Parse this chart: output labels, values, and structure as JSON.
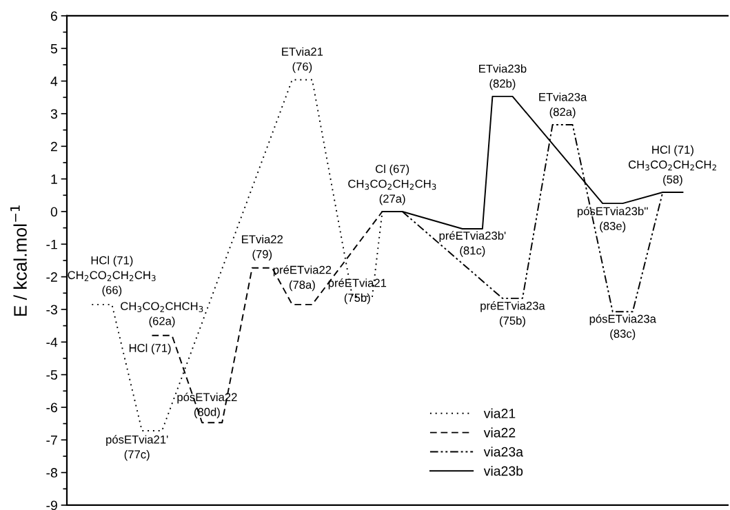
{
  "chart_data": {
    "type": "line",
    "ylabel": "E / kcal.mol$^{−1}$",
    "categories": [
      null,
      null,
      null,
      null,
      null,
      null,
      null,
      null,
      null,
      null,
      null,
      null,
      null,
      null,
      null,
      null,
      null,
      null,
      null,
      null,
      null,
      null,
      null,
      null,
      null,
      null,
      null,
      null,
      null,
      null,
      null,
      null,
      null,
      null,
      null,
      null,
      null,
      null,
      null,
      null,
      null,
      null,
      null,
      null,
      null,
      null,
      null,
      null,
      null,
      null,
      null,
      null,
      null,
      null,
      null,
      null,
      null,
      null,
      null,
      null,
      null,
      null,
      null,
      null,
      null,
      null
    ],
    "series": [
      {
        "name": "via21",
        "color": "#000000",
        "line_style": "dotted",
        "values": [
          null,
          null,
          -2.85,
          null,
          -2.85,
          null,
          null,
          -6.72,
          null,
          -6.72,
          null,
          null,
          null,
          null,
          null,
          null,
          null,
          null,
          null,
          null,
          null,
          null,
          4.04,
          null,
          4.04,
          null,
          null,
          null,
          -2.6,
          null,
          -2.6,
          0,
          null,
          0,
          null,
          null,
          null,
          null,
          null,
          null,
          null,
          null,
          null,
          null,
          null,
          null,
          null,
          null,
          null,
          null,
          null,
          null,
          null,
          null,
          null,
          null,
          null,
          null,
          null,
          null,
          null,
          null,
          null,
          null,
          null,
          null
        ]
      },
      {
        "name": "via22",
        "color": "#000000",
        "line_style": "dashed",
        "values": [
          null,
          null,
          null,
          null,
          null,
          null,
          null,
          null,
          -3.8,
          null,
          -3.8,
          null,
          null,
          -6.47,
          null,
          -6.47,
          null,
          null,
          -1.73,
          null,
          -1.73,
          null,
          -2.85,
          null,
          -2.85,
          null,
          null,
          null,
          null,
          null,
          null,
          0,
          null,
          0,
          null,
          null,
          null,
          null,
          null,
          null,
          null,
          null,
          null,
          null,
          null,
          null,
          null,
          null,
          null,
          null,
          null,
          null,
          null,
          null,
          null,
          null,
          null,
          null,
          null,
          null,
          null,
          null,
          null,
          null,
          null,
          null
        ]
      },
      {
        "name": "via23a",
        "color": "#000000",
        "line_style": "dashdotdot",
        "values": [
          null,
          null,
          null,
          null,
          null,
          null,
          null,
          null,
          null,
          null,
          null,
          null,
          null,
          null,
          null,
          null,
          null,
          null,
          null,
          null,
          null,
          null,
          null,
          null,
          null,
          null,
          null,
          null,
          null,
          null,
          null,
          0,
          null,
          0,
          null,
          null,
          null,
          null,
          null,
          null,
          null,
          null,
          null,
          -2.66,
          null,
          -2.66,
          null,
          null,
          2.66,
          null,
          2.66,
          null,
          null,
          null,
          -3.07,
          null,
          -3.07,
          null,
          null,
          0.59,
          null,
          0.59,
          null,
          null,
          null,
          null
        ]
      },
      {
        "name": "via23b",
        "color": "#000000",
        "line_style": "solid",
        "values": [
          null,
          null,
          null,
          null,
          null,
          null,
          null,
          null,
          null,
          null,
          null,
          null,
          null,
          null,
          null,
          null,
          null,
          null,
          null,
          null,
          null,
          null,
          null,
          null,
          null,
          null,
          null,
          null,
          null,
          null,
          null,
          0,
          null,
          0,
          null,
          null,
          null,
          null,
          null,
          -0.53,
          null,
          -0.53,
          3.53,
          null,
          3.53,
          null,
          null,
          null,
          null,
          null,
          null,
          null,
          null,
          0.25,
          null,
          0.25,
          null,
          null,
          null,
          0.59,
          null,
          0.59,
          null,
          null,
          null,
          null
        ]
      }
    ],
    "ylim": [
      -9,
      6
    ],
    "yticks": [
      -9,
      -8,
      -7,
      -6,
      -5,
      -4,
      -3,
      -2,
      -1,
      0,
      1,
      2,
      3,
      4,
      5,
      6
    ],
    "legend": "bottom",
    "tick_labels": "y",
    "annotations": [
      "HCl (71)\nCH$_{2}$CO$_{2}$CH$_{2}$CH$_{3}$\n(66)",
      "CH$_{3}$CO$_{2}$CHCH$_{3}$\n(62a)",
      "HCl (71)",
      "pósETvia21'\n(77c)",
      "pósETvia22\n(80d)",
      "ETvia22\n(79)",
      "préETvia22\n(78a)",
      "ETvia21\n(76)",
      "préETvia21\n(75b)",
      "Cl (67)\nCH$_{3}$CO$_{2}$CH$_{2}$CH$_{3}$\n(27a)",
      "préETvia23b'\n(81c)",
      "ETvia23b\n(82b)",
      "ETvia23a\n(82a)",
      "préETvia23a\n(75b)",
      "pósETvia23b''\n(83e)",
      "pósETvia23a\n(83c)",
      "HCl (71)\nCH$_{3}$CO$_{2}$CH$_{2}$CH$_{2}$\n(58)"
    ]
  }
}
